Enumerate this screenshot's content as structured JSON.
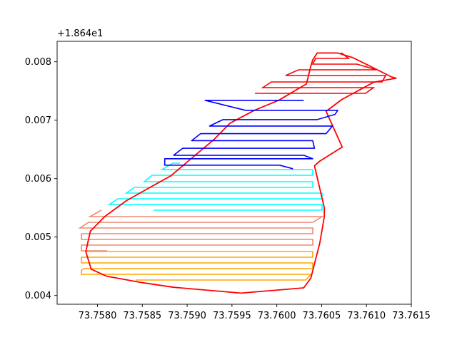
{
  "chart_data": {
    "type": "line",
    "title": "",
    "xlabel": "",
    "ylabel": "",
    "y_offset_label": "+1.864e1",
    "xlim": [
      73.75755,
      73.7615
    ],
    "ylim": [
      0.00385,
      0.00835
    ],
    "x_ticks": [
      {
        "value": 73.758,
        "label": "73.7580"
      },
      {
        "value": 73.7585,
        "label": "73.7585"
      },
      {
        "value": 73.759,
        "label": "73.7590"
      },
      {
        "value": 73.7595,
        "label": "73.7595"
      },
      {
        "value": 73.76,
        "label": "73.7600"
      },
      {
        "value": 73.7605,
        "label": "73.7605"
      },
      {
        "value": 73.761,
        "label": "73.7610"
      },
      {
        "value": 73.7615,
        "label": "73.7615"
      }
    ],
    "y_ticks": [
      {
        "value": 0.004,
        "label": "0.004"
      },
      {
        "value": 0.005,
        "label": "0.005"
      },
      {
        "value": 0.006,
        "label": "0.006"
      },
      {
        "value": 0.007,
        "label": "0.007"
      },
      {
        "value": 0.008,
        "label": "0.008"
      }
    ],
    "grid": false,
    "series": [
      {
        "color": "#ff0000",
        "x": [
          73.76085,
          73.76128,
          73.76133,
          73.76108,
          73.76072,
          73.76055,
          73.76073,
          73.76048,
          73.76042,
          73.76053,
          73.76053,
          73.76048,
          73.76038,
          73.7603,
          73.7596,
          73.75885,
          73.7585,
          73.7581,
          73.75793,
          73.75787,
          73.75792,
          73.75808,
          73.75832,
          73.75855,
          73.75882,
          73.75905,
          73.7593,
          73.75948,
          73.75975,
          73.76002,
          73.76023,
          73.76033,
          73.76038,
          73.7604,
          73.76045,
          73.76068,
          73.76085
        ],
        "y": [
          0.00807,
          0.00774,
          0.00772,
          0.00765,
          0.00735,
          0.00715,
          0.00654,
          0.0063,
          0.00622,
          0.0055,
          0.00535,
          0.0049,
          0.0043,
          0.00413,
          0.00404,
          0.00414,
          0.00422,
          0.00433,
          0.00445,
          0.00475,
          0.0051,
          0.00535,
          0.00562,
          0.00582,
          0.00605,
          0.00635,
          0.00667,
          0.00695,
          0.00717,
          0.00734,
          0.00753,
          0.00762,
          0.00793,
          0.00803,
          0.00815,
          0.00815,
          0.00807
        ]
      },
      {
        "color": "#0000ff",
        "x": [
          73.7603,
          73.7592,
          73.75965,
          73.76068,
          73.76065,
          73.76045,
          73.7594,
          73.75925,
          73.76062,
          73.76055,
          73.75915,
          73.75905,
          73.7604,
          73.76042,
          73.75895,
          73.75885,
          73.7603,
          73.7604,
          73.75875,
          73.75875,
          73.76003,
          73.76018
        ],
        "y": [
          0.00734,
          0.00734,
          0.00717,
          0.00717,
          0.0071,
          0.00701,
          0.00701,
          0.0069,
          0.0069,
          0.00677,
          0.00677,
          0.00665,
          0.00665,
          0.00652,
          0.00652,
          0.0064,
          0.0064,
          0.00634,
          0.00634,
          0.00623,
          0.00623,
          0.00617
        ]
      }
    ]
  }
}
